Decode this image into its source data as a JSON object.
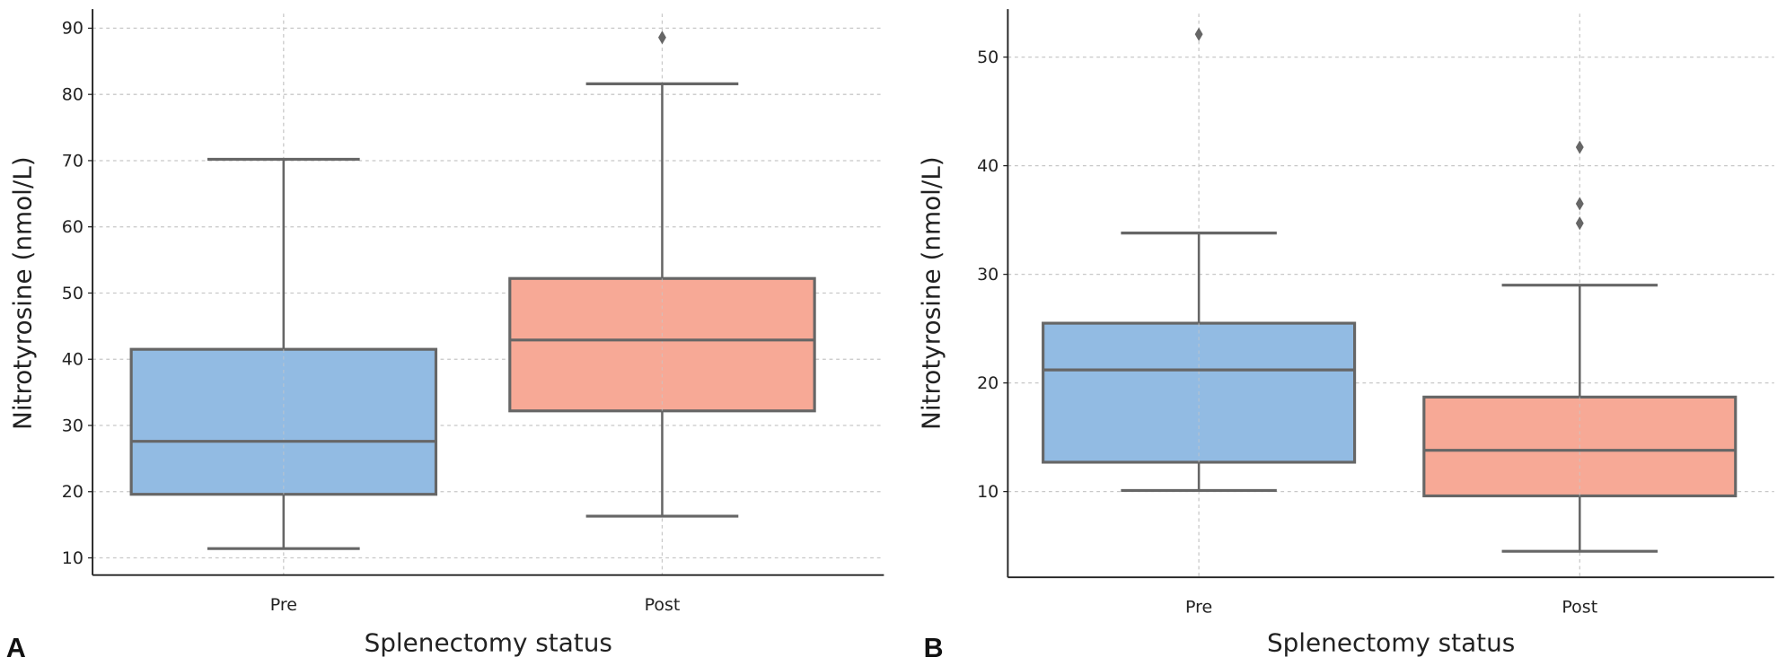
{
  "chart_data": [
    {
      "type": "box",
      "panel_label": "A",
      "xlabel": "Splenectomy status",
      "ylabel": "Nitrotyrosine (nmol/L)",
      "categories": [
        "Pre",
        "Post"
      ],
      "ylim": [
        7.4,
        92.2
      ],
      "yticks": [
        10,
        20,
        30,
        40,
        50,
        60,
        70,
        80,
        90
      ],
      "grid": true,
      "colors": [
        "#92bbe3",
        "#f7a996"
      ],
      "boxes": [
        {
          "category": "Pre",
          "whisker_low": 11.4,
          "q1": 19.6,
          "median": 27.6,
          "q3": 41.5,
          "whisker_high": 70.2,
          "outliers": []
        },
        {
          "category": "Post",
          "whisker_low": 16.3,
          "q1": 32.2,
          "median": 42.9,
          "q3": 52.2,
          "whisker_high": 81.6,
          "outliers": [
            88.6
          ]
        }
      ]
    },
    {
      "type": "box",
      "panel_label": "B",
      "xlabel": "Splenectomy status",
      "ylabel": "Nitrotyrosine (nmol/L)",
      "categories": [
        "Pre",
        "Post"
      ],
      "ylim": [
        2.1,
        54.0
      ],
      "yticks": [
        10,
        20,
        30,
        40,
        50
      ],
      "grid": true,
      "colors": [
        "#92bbe3",
        "#f7a996"
      ],
      "boxes": [
        {
          "category": "Pre",
          "whisker_low": 10.1,
          "q1": 12.7,
          "median": 21.2,
          "q3": 25.5,
          "whisker_high": 33.8,
          "outliers": [
            52.1
          ]
        },
        {
          "category": "Post",
          "whisker_low": 4.5,
          "q1": 9.6,
          "median": 13.8,
          "q3": 18.7,
          "whisker_high": 29.0,
          "outliers": [
            34.7,
            36.5,
            41.7
          ]
        }
      ]
    }
  ]
}
